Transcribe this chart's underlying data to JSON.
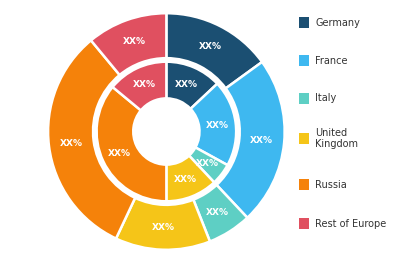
{
  "outer_values": [
    15,
    23,
    6,
    13,
    32,
    11
  ],
  "inner_values": [
    13,
    20,
    5,
    12,
    36,
    14
  ],
  "colors": [
    "#1b4f72",
    "#3eb8f0",
    "#5ecfc4",
    "#f5c518",
    "#f5820a",
    "#e05060"
  ],
  "labels": [
    "Germany",
    "France",
    "Italy",
    "United Kingdom",
    "Russia",
    "Rest of Europe"
  ],
  "label_text": "XX%",
  "background_color": "#ffffff",
  "text_color": "#ffffff",
  "font_size": 6.5,
  "legend_labels": [
    "Germany",
    "France",
    "Italy",
    "United\nKingdom",
    "Russia",
    "Rest of Europe"
  ],
  "legend_colors": [
    "#1b4f72",
    "#3eb8f0",
    "#5ecfc4",
    "#f5c518",
    "#f5820a",
    "#e05060"
  ]
}
